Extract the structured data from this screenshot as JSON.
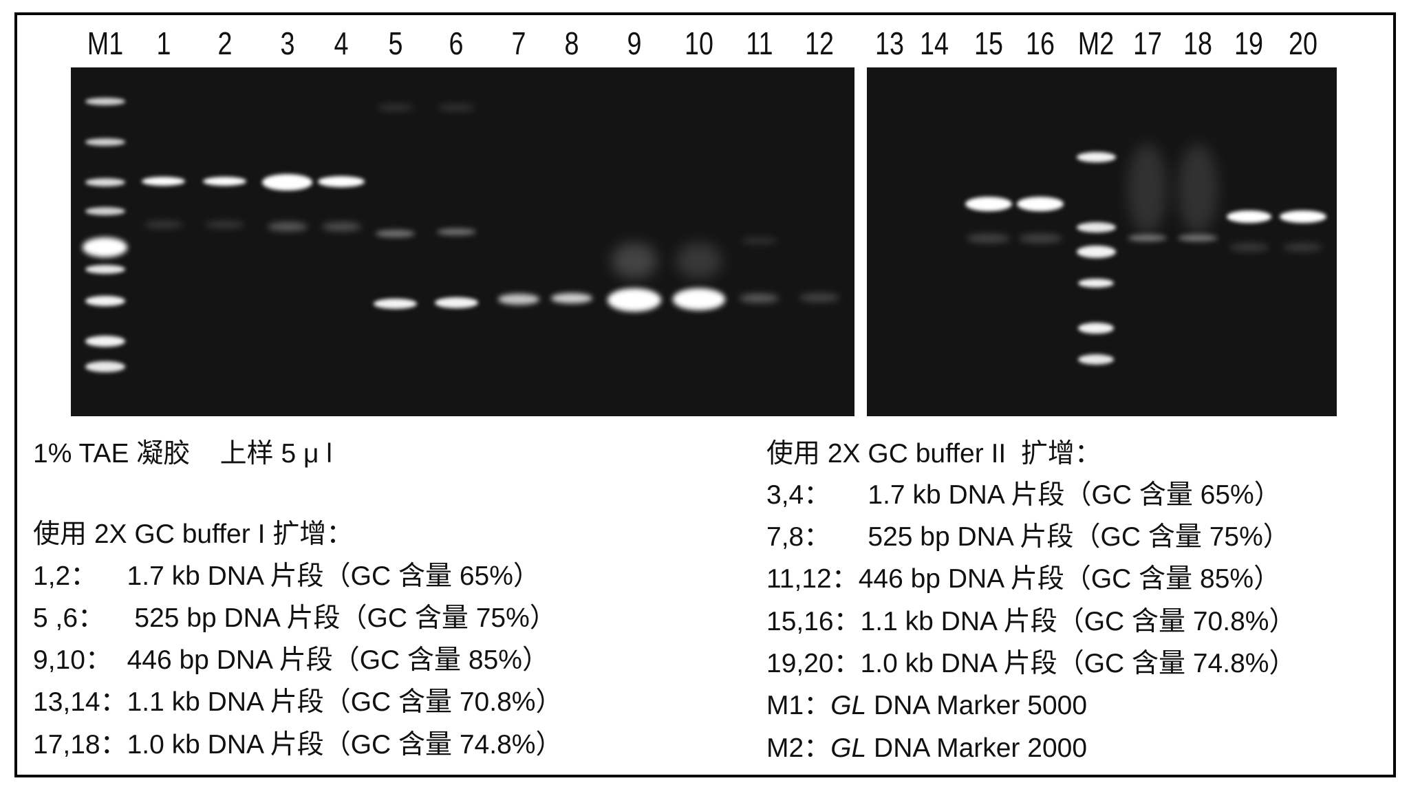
{
  "lane_labels": [
    "M1",
    "1",
    "2",
    "3",
    "4",
    "5",
    "6",
    "7",
    "8",
    "9",
    "10",
    "11",
    "12",
    "13",
    "14",
    "15",
    "16",
    "M2",
    "17",
    "18",
    "19",
    "20"
  ],
  "left_text": {
    "gel_info": "1% TAE 凝胶    上样 5 μ l",
    "heading": "使用 2X GC buffer I 扩增：",
    "lines": [
      "1,2：    1.7 kb DNA 片段（GC 含量 65%）",
      "5 ,6：    525 bp DNA 片段（GC 含量 75%）",
      "9,10：  446 bp DNA 片段（GC 含量 85%）",
      "13,14：1.1 kb DNA 片段（GC 含量 70.8%）",
      "17,18：1.0 kb DNA 片段（GC 含量 74.8%）"
    ]
  },
  "right_text": {
    "heading": "使用 2X GC buffer II  扩增：",
    "lines": [
      "3,4：     1.7 kb DNA 片段（GC 含量 65%）",
      "7,8：     525 bp DNA 片段（GC 含量 75%）",
      "11,12：446 bp DNA 片段（GC 含量 85%）",
      "15,16：1.1 kb DNA 片段（GC 含量 70.8%）",
      "19,20：1.0 kb DNA 片段（GC 含量 74.8%）"
    ],
    "markers": [
      {
        "prefix": "M1：",
        "italic": "GL",
        "suffix": " DNA Marker 5000"
      },
      {
        "prefix": "M2：",
        "italic": "GL",
        "suffix": " DNA Marker 2000"
      }
    ]
  },
  "colors": {
    "gel_background": "#141414",
    "band": "#ffffff",
    "border": "#000000"
  }
}
